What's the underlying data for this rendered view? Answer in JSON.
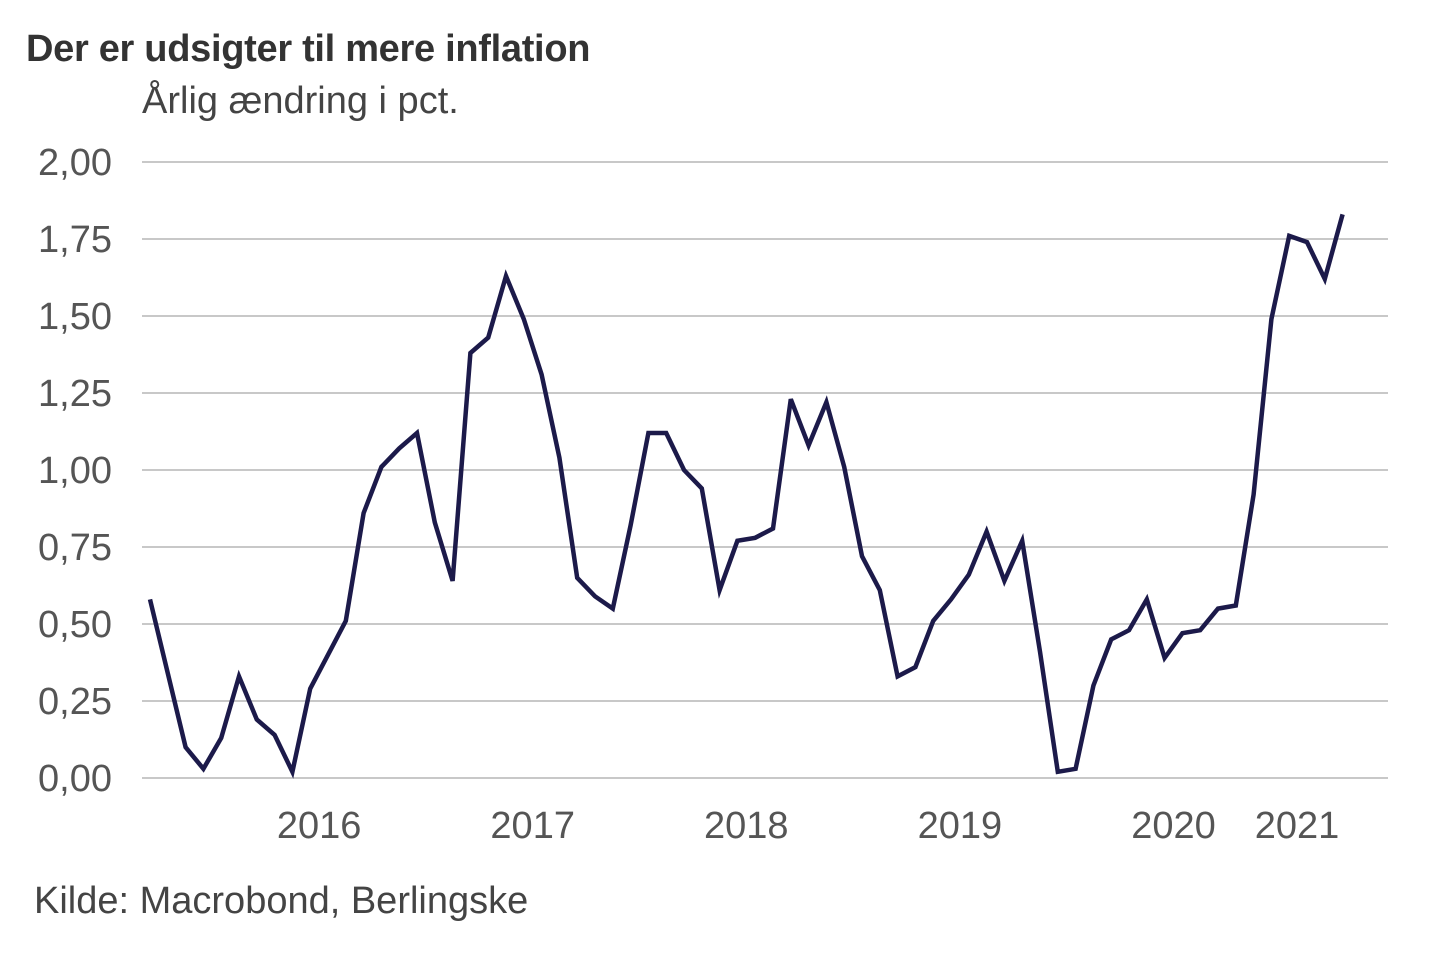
{
  "chart_data": {
    "type": "line",
    "title": "Der er udsigter til mere inflation",
    "subtitle": "Årlig ændring i pct.",
    "source": "Kilde: Macrobond, Berlingske",
    "xlabel": "",
    "ylabel": "Årlig ændring i pct.",
    "ylim": [
      0,
      2
    ],
    "yticks": [
      0,
      0.25,
      0.5,
      0.75,
      1.0,
      1.25,
      1.5,
      1.75,
      2.0
    ],
    "ytick_labels": [
      "0,00",
      "0,25",
      "0,50",
      "0,75",
      "1,00",
      "1,25",
      "1,50",
      "1,75",
      "2,00"
    ],
    "xtick_labels": [
      "2016",
      "2017",
      "2018",
      "2019",
      "2020",
      "2021"
    ],
    "grid": true,
    "legend": "none",
    "line_color": "#1c1a4a",
    "grid_color": "#c8c8c8",
    "x_start": "2015-09",
    "x_freq": "monthly",
    "series": [
      {
        "name": "Inflation",
        "values": [
          0.58,
          0.34,
          0.1,
          0.03,
          0.13,
          0.33,
          0.19,
          0.14,
          0.02,
          0.29,
          0.4,
          0.51,
          0.86,
          1.01,
          1.07,
          1.12,
          0.83,
          0.64,
          1.38,
          1.43,
          1.63,
          1.49,
          1.31,
          1.04,
          0.65,
          0.59,
          0.55,
          0.82,
          1.12,
          1.12,
          1.0,
          0.94,
          0.61,
          0.77,
          0.78,
          0.81,
          1.23,
          1.08,
          1.22,
          1.01,
          0.72,
          0.61,
          0.33,
          0.36,
          0.51,
          0.58,
          0.66,
          0.8,
          0.64,
          0.77,
          0.41,
          0.02,
          0.03,
          0.3,
          0.45,
          0.48,
          0.58,
          0.39,
          0.47,
          0.48,
          0.55,
          0.56,
          0.92,
          1.49,
          1.76,
          1.74,
          1.62,
          1.83
        ]
      }
    ]
  }
}
